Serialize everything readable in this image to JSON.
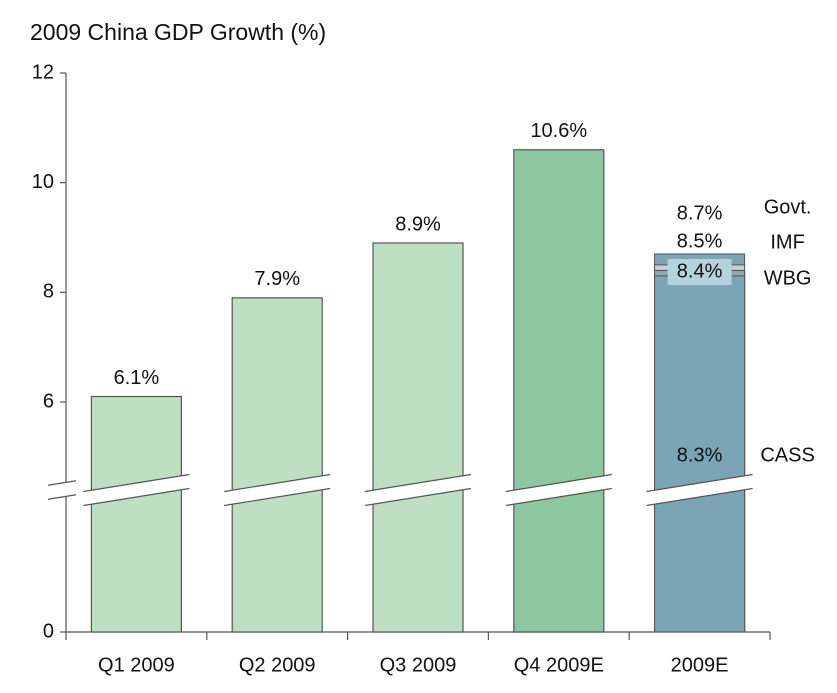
{
  "chart_data": {
    "type": "bar",
    "title": "2009 China GDP Growth (%)",
    "categories": [
      "Q1 2009",
      "Q2 2009",
      "Q3 2009",
      "Q4 2009E",
      "2009E"
    ],
    "values": [
      6.1,
      7.9,
      8.9,
      10.6,
      null
    ],
    "value_labels": [
      "6.1%",
      "7.9%",
      "8.9%",
      "10.6%",
      null
    ],
    "colors": [
      "#bfdfc4",
      "#bfdfc4",
      "#bfdfc4",
      "#8dc79f",
      "#7ba4b5"
    ],
    "estimates": [
      {
        "name": "Govt.",
        "value": 8.7,
        "value_label": "8.7%",
        "color": "#7ba4b5"
      },
      {
        "name": "IMF",
        "value": 8.5,
        "value_label": "8.5%",
        "color": "#c9d3d6"
      },
      {
        "name": "WBG",
        "value": 8.4,
        "value_label": "8.4%",
        "color": "#8fa8b2"
      },
      {
        "name": "CASS",
        "value": 8.3,
        "value_label": "8.3%",
        "color": "#7ba4b5"
      }
    ],
    "ylim": [
      0,
      12
    ],
    "yticks": [
      0,
      6,
      8,
      10,
      12
    ],
    "axis_break": true
  }
}
